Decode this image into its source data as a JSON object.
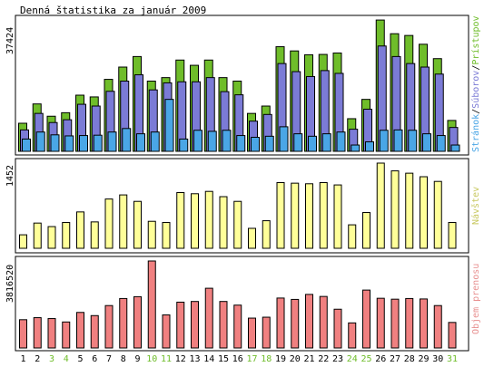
{
  "chart_data": [
    {
      "type": "bar",
      "panel": "top",
      "title": "Denná štatistika za január 2009",
      "ymax_label": "37424",
      "ylim": [
        0,
        37424
      ],
      "legend_placement": "right-vertical",
      "legend": [
        {
          "name": "Stránok",
          "color": "#4aa6e6"
        },
        {
          "name": "Súborov",
          "color": "#7b7bd6"
        },
        {
          "name": "Prístupov",
          "color": "#6fbd2a"
        }
      ],
      "legend_separator": "/",
      "categories": [
        "1",
        "2",
        "3",
        "4",
        "5",
        "6",
        "7",
        "8",
        "9",
        "10",
        "11",
        "12",
        "13",
        "14",
        "15",
        "16",
        "17",
        "18",
        "19",
        "20",
        "21",
        "22",
        "23",
        "24",
        "25",
        "26",
        "27",
        "28",
        "29",
        "30",
        "31"
      ],
      "weekend_days": [
        "3",
        "4",
        "10",
        "11",
        "17",
        "18",
        "24",
        "25",
        "31"
      ],
      "series": [
        {
          "name": "Prístupov",
          "values": [
            8000,
            13500,
            10000,
            11000,
            16000,
            15500,
            20500,
            24000,
            27000,
            20000,
            21000,
            26000,
            24500,
            26000,
            21000,
            20000,
            10800,
            12900,
            29800,
            28600,
            27500,
            27600,
            28000,
            9300,
            14800,
            37400,
            33500,
            33000,
            30500,
            26400,
            8800
          ]
        },
        {
          "name": "Súborov",
          "values": [
            6100,
            10800,
            8200,
            9000,
            13400,
            12900,
            17100,
            20000,
            21800,
            17500,
            19500,
            19800,
            19800,
            21000,
            17000,
            16100,
            8600,
            10500,
            25000,
            22700,
            21300,
            23000,
            22200,
            6300,
            12000,
            30000,
            27000,
            25000,
            24000,
            22000,
            6800
          ]
        },
        {
          "name": "Stránok",
          "values": [
            3500,
            5500,
            4700,
            4400,
            4500,
            4600,
            5500,
            6500,
            5000,
            5500,
            14800,
            3500,
            6000,
            5700,
            6000,
            4500,
            4000,
            4300,
            7000,
            5000,
            4300,
            5000,
            5500,
            1800,
            2700,
            6000,
            6100,
            6000,
            5000,
            4500,
            1800
          ]
        }
      ]
    },
    {
      "type": "bar",
      "panel": "middle",
      "series_name": "Návštev",
      "color": "#ffff99",
      "ymax_label": "1452",
      "ylim": [
        0,
        1452
      ],
      "values": [
        230,
        430,
        370,
        440,
        620,
        450,
        840,
        910,
        800,
        460,
        440,
        950,
        930,
        970,
        880,
        800,
        340,
        470,
        1120,
        1110,
        1100,
        1120,
        1080,
        400,
        610,
        1452,
        1320,
        1280,
        1220,
        1140,
        440
      ]
    },
    {
      "type": "bar",
      "panel": "bottom",
      "series_name": "Objem prenosu",
      "color": "#f08080",
      "ymax_label": "3816520",
      "ylim": [
        0,
        3816520
      ],
      "values": [
        1240000,
        1330000,
        1290000,
        1140000,
        1560000,
        1420000,
        1860000,
        2170000,
        2250000,
        3816520,
        1450000,
        2010000,
        2040000,
        2620000,
        2040000,
        1880000,
        1310000,
        1350000,
        2190000,
        2130000,
        2350000,
        2260000,
        1700000,
        1100000,
        2540000,
        2180000,
        2140000,
        2170000,
        2150000,
        1860000,
        1120000
      ]
    }
  ]
}
